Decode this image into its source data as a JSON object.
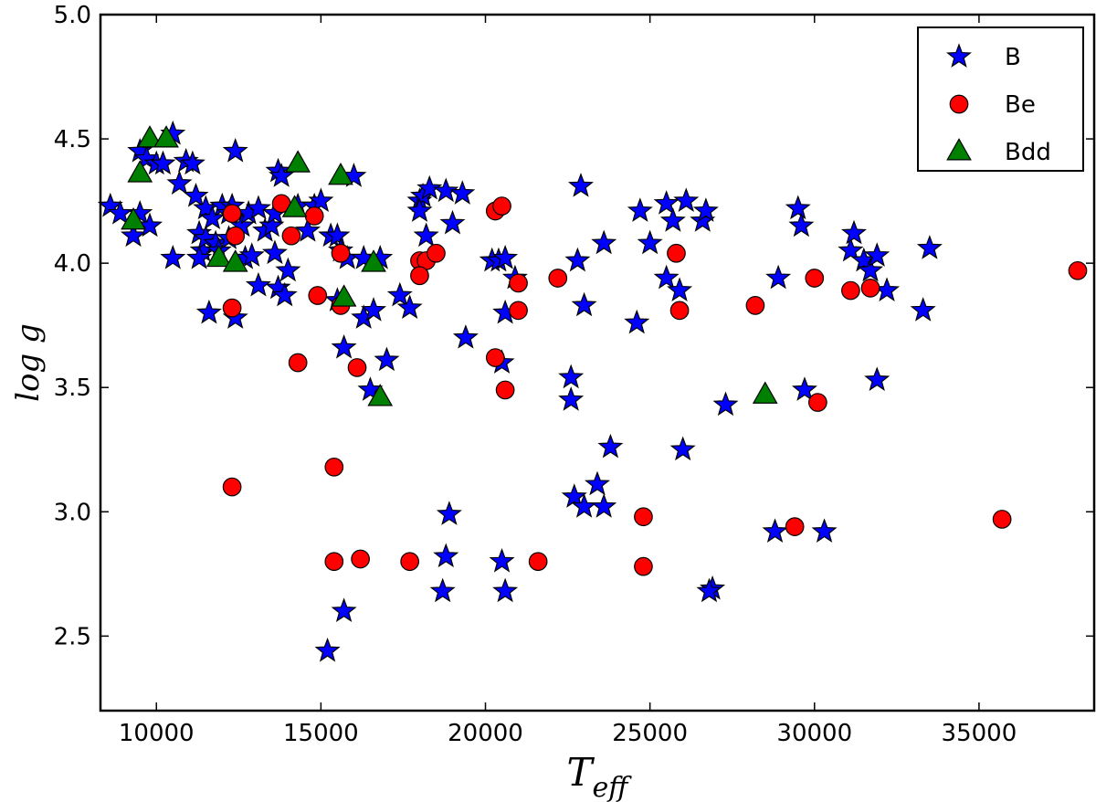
{
  "chart_data": {
    "type": "scatter",
    "title": "",
    "xlabel": "T_eff",
    "ylabel": "log g",
    "xlim": [
      8300,
      38500
    ],
    "ylim": [
      2.2,
      5.0
    ],
    "x_ticks": [
      10000,
      15000,
      20000,
      25000,
      30000,
      35000
    ],
    "x_tick_labels": [
      "10000",
      "15000",
      "20000",
      "25000",
      "30000",
      "35000"
    ],
    "y_ticks": [
      2.5,
      3.0,
      3.5,
      4.0,
      4.5,
      5.0
    ],
    "y_tick_labels": [
      "2.5",
      "3.0",
      "3.5",
      "4.0",
      "4.5",
      "5.0"
    ],
    "grid": false,
    "legend_position": "top-right",
    "series": [
      {
        "name": "B",
        "marker": "star",
        "color": "#0000ff",
        "points": [
          [
            8600,
            4.23
          ],
          [
            8900,
            4.2
          ],
          [
            9300,
            4.11
          ],
          [
            9500,
            4.2
          ],
          [
            9800,
            4.15
          ],
          [
            9500,
            4.45
          ],
          [
            9700,
            4.42
          ],
          [
            10000,
            4.4
          ],
          [
            10200,
            4.4
          ],
          [
            10500,
            4.52
          ],
          [
            10700,
            4.32
          ],
          [
            10900,
            4.41
          ],
          [
            11100,
            4.4
          ],
          [
            11200,
            4.27
          ],
          [
            11300,
            4.12
          ],
          [
            11400,
            4.05
          ],
          [
            11500,
            4.22
          ],
          [
            11500,
            4.1
          ],
          [
            11700,
            4.18
          ],
          [
            11800,
            4.08
          ],
          [
            11900,
            4.05
          ],
          [
            12000,
            4.23
          ],
          [
            11600,
            3.8
          ],
          [
            10500,
            4.02
          ],
          [
            11300,
            4.02
          ],
          [
            12200,
            4.1
          ],
          [
            12300,
            4.23
          ],
          [
            12400,
            4.45
          ],
          [
            12600,
            4.15
          ],
          [
            12700,
            4.02
          ],
          [
            12800,
            4.2
          ],
          [
            12900,
            4.03
          ],
          [
            13100,
            4.22
          ],
          [
            13300,
            4.13
          ],
          [
            13500,
            4.15
          ],
          [
            13600,
            4.2
          ],
          [
            13700,
            4.37
          ],
          [
            13800,
            4.35
          ],
          [
            13600,
            4.04
          ],
          [
            13700,
            3.9
          ],
          [
            13900,
            3.87
          ],
          [
            13100,
            3.91
          ],
          [
            14000,
            3.97
          ],
          [
            14300,
            4.23
          ],
          [
            14600,
            4.13
          ],
          [
            14800,
            4.23
          ],
          [
            15000,
            4.25
          ],
          [
            15300,
            4.11
          ],
          [
            15500,
            4.11
          ],
          [
            15600,
            4.05
          ],
          [
            15800,
            4.02
          ],
          [
            16000,
            4.35
          ],
          [
            15500,
            3.85
          ],
          [
            15700,
            3.66
          ],
          [
            16300,
            4.02
          ],
          [
            16800,
            4.02
          ],
          [
            16300,
            3.78
          ],
          [
            16600,
            3.81
          ],
          [
            17000,
            3.61
          ],
          [
            16500,
            3.49
          ],
          [
            17400,
            3.87
          ],
          [
            17700,
            3.82
          ],
          [
            18000,
            4.25
          ],
          [
            18100,
            4.27
          ],
          [
            18300,
            4.3
          ],
          [
            18200,
            4.11
          ],
          [
            18000,
            4.21
          ],
          [
            18800,
            4.29
          ],
          [
            19000,
            4.16
          ],
          [
            19300,
            4.28
          ],
          [
            19400,
            3.7
          ],
          [
            20200,
            4.01
          ],
          [
            20400,
            4.01
          ],
          [
            20500,
            3.6
          ],
          [
            20600,
            4.02
          ],
          [
            20600,
            3.8
          ],
          [
            20900,
            3.94
          ],
          [
            22900,
            4.31
          ],
          [
            22800,
            4.01
          ],
          [
            23000,
            3.83
          ],
          [
            22600,
            3.54
          ],
          [
            22600,
            3.45
          ],
          [
            23600,
            4.08
          ],
          [
            23800,
            3.26
          ],
          [
            22700,
            3.06
          ],
          [
            23000,
            3.02
          ],
          [
            23400,
            3.11
          ],
          [
            23600,
            3.02
          ],
          [
            24700,
            4.21
          ],
          [
            25000,
            4.08
          ],
          [
            24600,
            3.76
          ],
          [
            25500,
            4.24
          ],
          [
            25700,
            4.17
          ],
          [
            26100,
            4.25
          ],
          [
            25500,
            3.94
          ],
          [
            25900,
            3.89
          ],
          [
            26600,
            4.17
          ],
          [
            26700,
            4.21
          ],
          [
            26000,
            3.25
          ],
          [
            26900,
            2.69
          ],
          [
            26800,
            2.68
          ],
          [
            27300,
            3.43
          ],
          [
            28900,
            3.94
          ],
          [
            29500,
            4.22
          ],
          [
            29600,
            4.15
          ],
          [
            29700,
            3.49
          ],
          [
            28800,
            2.92
          ],
          [
            30300,
            2.92
          ],
          [
            31100,
            4.05
          ],
          [
            31200,
            4.12
          ],
          [
            31500,
            4.01
          ],
          [
            31700,
            3.97
          ],
          [
            31900,
            4.03
          ],
          [
            31900,
            3.53
          ],
          [
            32200,
            3.89
          ],
          [
            33300,
            3.81
          ],
          [
            33500,
            4.06
          ],
          [
            18900,
            2.99
          ],
          [
            18800,
            2.82
          ],
          [
            18700,
            2.68
          ],
          [
            20500,
            2.8
          ],
          [
            20600,
            2.68
          ],
          [
            15700,
            2.6
          ],
          [
            15200,
            2.44
          ],
          [
            12400,
            3.78
          ],
          [
            12200,
            4.2
          ]
        ]
      },
      {
        "name": "Be",
        "marker": "circle",
        "color": "#ff0000",
        "points": [
          [
            12300,
            4.2
          ],
          [
            12400,
            4.11
          ],
          [
            12300,
            3.82
          ],
          [
            12300,
            3.1
          ],
          [
            13800,
            4.24
          ],
          [
            14100,
            4.11
          ],
          [
            14800,
            4.19
          ],
          [
            14900,
            3.87
          ],
          [
            14300,
            3.6
          ],
          [
            15600,
            4.04
          ],
          [
            15600,
            3.83
          ],
          [
            15400,
            3.18
          ],
          [
            16100,
            3.58
          ],
          [
            15400,
            2.8
          ],
          [
            16200,
            2.81
          ],
          [
            17700,
            2.8
          ],
          [
            18000,
            4.01
          ],
          [
            18200,
            4.01
          ],
          [
            18500,
            4.04
          ],
          [
            18000,
            3.95
          ],
          [
            20300,
            4.21
          ],
          [
            20500,
            4.23
          ],
          [
            20300,
            3.62
          ],
          [
            20600,
            3.49
          ],
          [
            21000,
            3.92
          ],
          [
            21000,
            3.81
          ],
          [
            22200,
            3.94
          ],
          [
            21600,
            2.8
          ],
          [
            24800,
            2.98
          ],
          [
            24800,
            2.78
          ],
          [
            25800,
            4.04
          ],
          [
            25900,
            3.81
          ],
          [
            28200,
            3.83
          ],
          [
            30000,
            3.94
          ],
          [
            30100,
            3.44
          ],
          [
            29400,
            2.94
          ],
          [
            31100,
            3.89
          ],
          [
            31700,
            3.9
          ],
          [
            35700,
            2.97
          ],
          [
            38000,
            3.97
          ]
        ]
      },
      {
        "name": "Bdd",
        "marker": "triangle",
        "color": "#008000",
        "points": [
          [
            9300,
            4.17
          ],
          [
            9500,
            4.36
          ],
          [
            9800,
            4.5
          ],
          [
            10300,
            4.5
          ],
          [
            11900,
            4.02
          ],
          [
            12400,
            4.0
          ],
          [
            14300,
            4.4
          ],
          [
            14200,
            4.22
          ],
          [
            15600,
            4.35
          ],
          [
            15700,
            3.86
          ],
          [
            16600,
            4.0
          ],
          [
            16800,
            3.46
          ],
          [
            28500,
            3.47
          ]
        ]
      }
    ]
  }
}
